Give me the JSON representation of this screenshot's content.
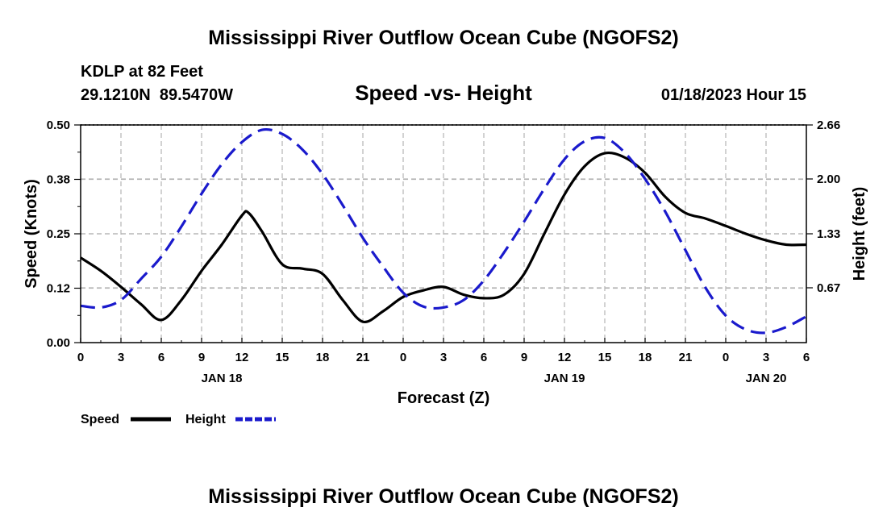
{
  "chart_data": {
    "type": "line",
    "title": "Mississippi River Outflow Ocean Cube (NGOFS2)",
    "footer_title": "Mississippi River Outflow Ocean Cube (NGOFS2)",
    "station": "KDLP at 82 Feet",
    "coordinates": "29.1210N  89.5470W",
    "subtitle": "Speed -vs- Height",
    "datetime": "01/18/2023 Hour 15",
    "xlabel": "Forecast (Z)",
    "ylabel_left": "Speed (Knots)",
    "ylabel_right": "Height (feet)",
    "x_range": [
      0,
      54
    ],
    "x_tick_values": [
      0,
      3,
      6,
      9,
      12,
      15,
      18,
      21,
      24,
      27,
      30,
      33,
      36,
      39,
      42,
      45,
      48,
      51,
      54
    ],
    "x_tick_labels": [
      "0",
      "3",
      "6",
      "9",
      "12",
      "15",
      "18",
      "21",
      "0",
      "3",
      "6",
      "9",
      "12",
      "15",
      "18",
      "21",
      "0",
      "3",
      "6"
    ],
    "date_labels": [
      {
        "x": 10.5,
        "label": "JAN 18"
      },
      {
        "x": 36,
        "label": "JAN 19"
      },
      {
        "x": 51,
        "label": "JAN 20"
      }
    ],
    "left_axis": {
      "range": [
        0,
        0.5
      ],
      "ticks": [
        0.0,
        0.125,
        0.25,
        0.375,
        0.5
      ],
      "tick_labels": [
        "0.00",
        "0.12",
        "0.25",
        "0.38",
        "0.50"
      ]
    },
    "right_axis": {
      "range": [
        0.0,
        2.66
      ],
      "ticks": [
        0.67,
        1.33,
        2.0,
        2.66
      ],
      "tick_labels": [
        "0.67",
        "1.33",
        "2.00",
        "2.66"
      ]
    },
    "grid": true,
    "legend_position": "bottom-left",
    "series": [
      {
        "name": "Speed",
        "axis": "left",
        "color": "#000000",
        "dash": "solid",
        "x": [
          0,
          1.5,
          3,
          4.5,
          6,
          7.5,
          9,
          10.5,
          12,
          12.5,
          13.5,
          15,
          16.5,
          18,
          19.5,
          21,
          22.5,
          24,
          25.5,
          27,
          28.5,
          30,
          31.5,
          33,
          34.5,
          36,
          37.5,
          39,
          40.5,
          42,
          43.5,
          45,
          46.5,
          48,
          49.5,
          51,
          52.5,
          54
        ],
        "values": [
          0.195,
          0.165,
          0.128,
          0.088,
          0.052,
          0.098,
          0.165,
          0.225,
          0.292,
          0.298,
          0.255,
          0.18,
          0.17,
          0.158,
          0.098,
          0.048,
          0.072,
          0.105,
          0.12,
          0.128,
          0.11,
          0.102,
          0.11,
          0.158,
          0.25,
          0.34,
          0.405,
          0.435,
          0.425,
          0.39,
          0.335,
          0.298,
          0.285,
          0.268,
          0.25,
          0.235,
          0.225,
          0.225
        ]
      },
      {
        "name": "Height",
        "axis": "right",
        "color": "#1a1acc",
        "dash": "dashed",
        "x": [
          0,
          1.5,
          3,
          4.5,
          6,
          7.5,
          9,
          10.5,
          12,
          13.5,
          15,
          16.5,
          18,
          19.5,
          21,
          22.5,
          24,
          25.5,
          27,
          28.5,
          30,
          31.5,
          33,
          34.5,
          36,
          37.5,
          39,
          40.5,
          42,
          43.5,
          45,
          46.5,
          48,
          49.5,
          51,
          52.5,
          54
        ],
        "values": [
          0.45,
          0.43,
          0.52,
          0.78,
          1.05,
          1.42,
          1.82,
          2.18,
          2.45,
          2.6,
          2.55,
          2.36,
          2.06,
          1.68,
          1.28,
          0.93,
          0.61,
          0.44,
          0.43,
          0.52,
          0.76,
          1.1,
          1.48,
          1.88,
          2.24,
          2.46,
          2.5,
          2.32,
          2.0,
          1.6,
          1.13,
          0.67,
          0.33,
          0.16,
          0.12,
          0.19,
          0.32
        ]
      }
    ]
  }
}
